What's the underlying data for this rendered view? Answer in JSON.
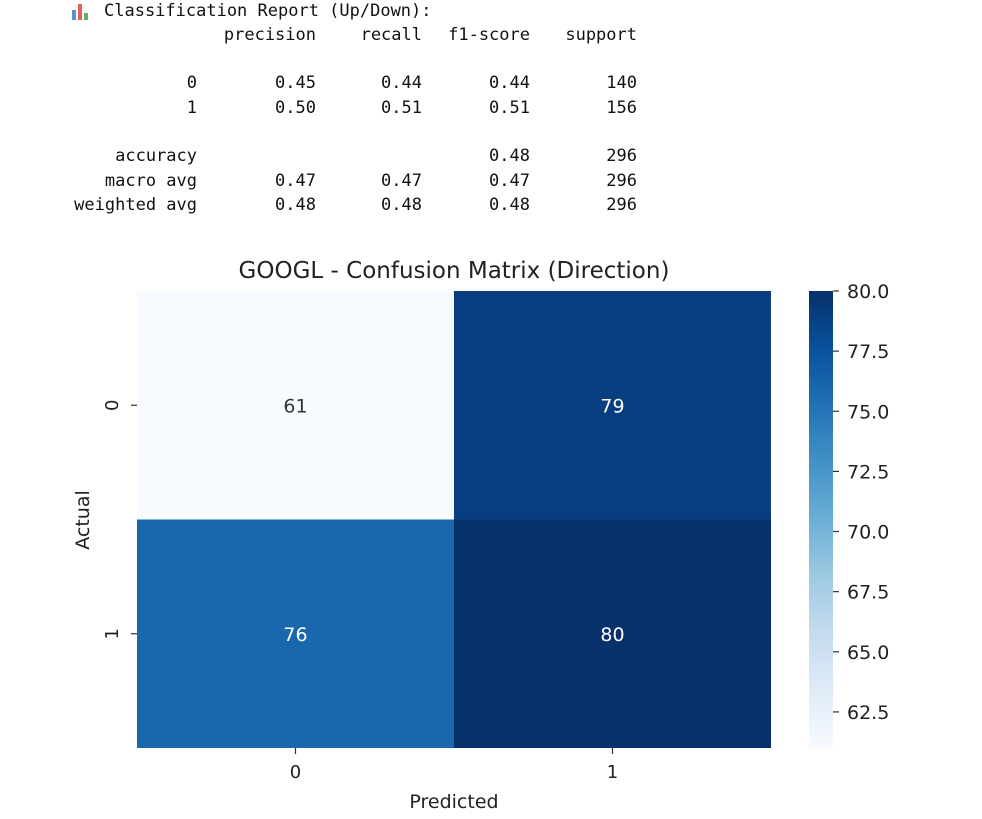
{
  "report": {
    "icon": "bar-chart-icon",
    "title": "Classification Report (Up/Down):",
    "headers": [
      "precision",
      "recall",
      "f1-score",
      "support"
    ],
    "rows": [
      {
        "label": "0",
        "precision": "0.45",
        "recall": "0.44",
        "f1": "0.44",
        "support": "140"
      },
      {
        "label": "1",
        "precision": "0.50",
        "recall": "0.51",
        "f1": "0.51",
        "support": "156"
      },
      {
        "label": "accuracy",
        "precision": "",
        "recall": "",
        "f1": "0.48",
        "support": "296"
      },
      {
        "label": "macro avg",
        "precision": "0.47",
        "recall": "0.47",
        "f1": "0.47",
        "support": "296"
      },
      {
        "label": "weighted avg",
        "precision": "0.48",
        "recall": "0.48",
        "f1": "0.48",
        "support": "296"
      }
    ]
  },
  "chart_data": {
    "type": "heatmap",
    "title": "GOOGL - Confusion Matrix (Direction)",
    "xlabel": "Predicted",
    "ylabel": "Actual",
    "x_categories": [
      "0",
      "1"
    ],
    "y_categories": [
      "0",
      "1"
    ],
    "values": [
      [
        61,
        79
      ],
      [
        76,
        80
      ]
    ],
    "colormap": "Blues",
    "color_min": 61,
    "color_max": 80,
    "colorbar_ticks": [
      "62.5",
      "65.0",
      "67.5",
      "70.0",
      "72.5",
      "75.0",
      "77.5",
      "80.0"
    ],
    "colorbar_tick_values": [
      62.5,
      65.0,
      67.5,
      70.0,
      72.5,
      75.0,
      77.5,
      80.0
    ],
    "annotations": true
  }
}
